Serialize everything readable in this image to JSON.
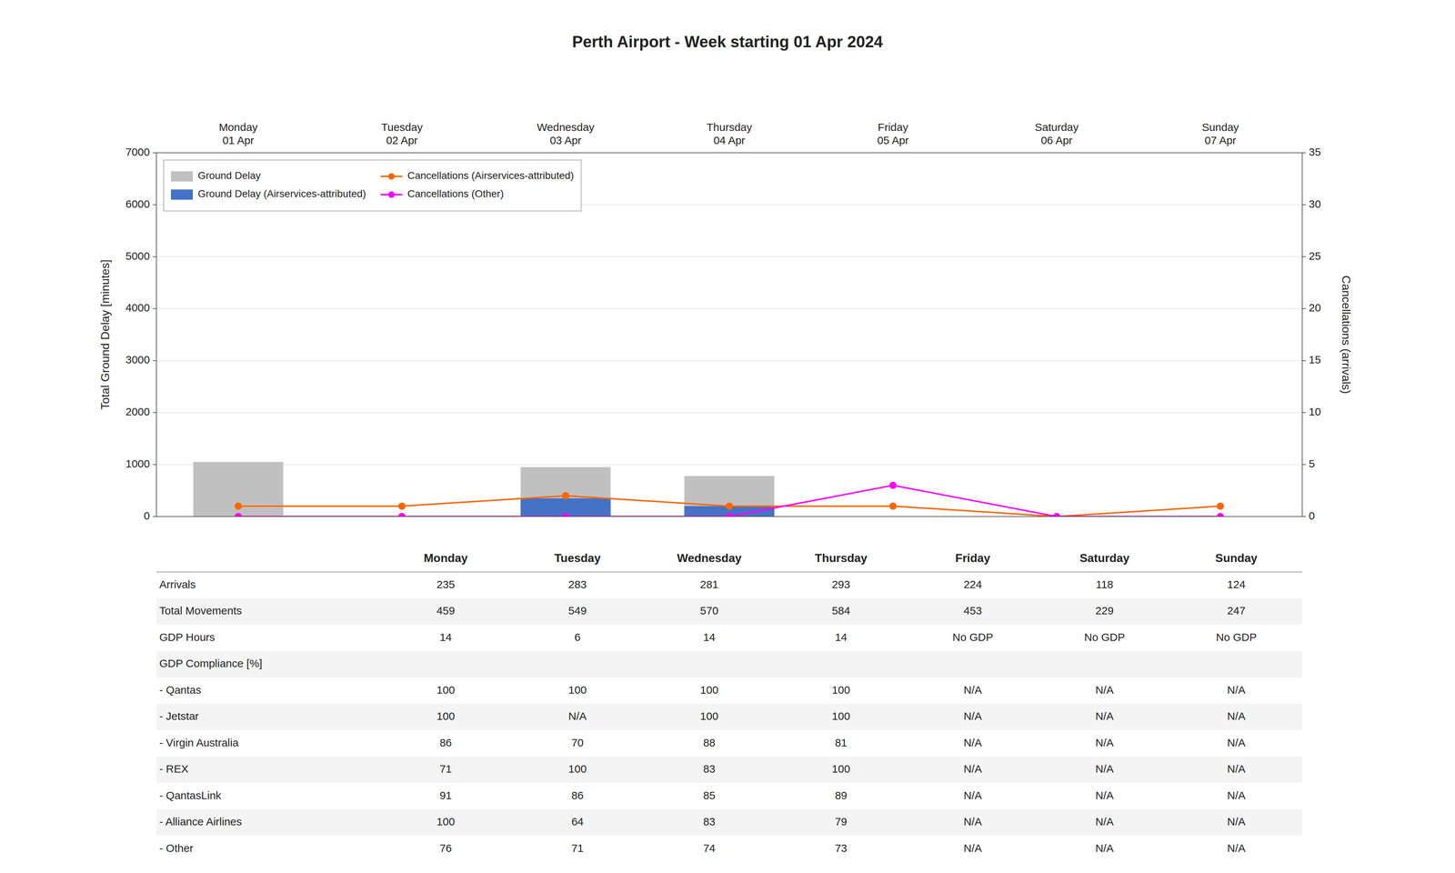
{
  "chart_data": {
    "type": "bar",
    "title": "Perth Airport - Week starting 01 Apr 2024",
    "categories": [
      "Monday\n01 Apr",
      "Tuesday\n02 Apr",
      "Wednesday\n03 Apr",
      "Thursday\n04 Apr",
      "Friday\n05 Apr",
      "Saturday\n06 Apr",
      "Sunday\n07 Apr"
    ],
    "series": [
      {
        "name": "Ground Delay",
        "type": "bar",
        "color": "#c0c0c0",
        "values": [
          1050,
          0,
          950,
          780,
          0,
          0,
          0
        ]
      },
      {
        "name": "Ground Delay (Airservices-attributed)",
        "type": "bar",
        "color": "#4472c4",
        "values": [
          0,
          0,
          350,
          200,
          0,
          0,
          0
        ]
      },
      {
        "name": "Cancellations (Airservices-attributed)",
        "type": "line",
        "axis": "y2",
        "marker": "circle",
        "line_style": "solid",
        "color": "#ff6600",
        "values": [
          1,
          1,
          2,
          1,
          1,
          0,
          1
        ]
      },
      {
        "name": "Cancellations (Other)",
        "type": "line",
        "axis": "y2",
        "marker": "circle",
        "line_style": "solid",
        "color": "#ff00ff",
        "values": [
          0,
          0,
          0,
          0,
          3,
          0,
          0
        ]
      }
    ],
    "stacked": false,
    "ylabel": "Total Ground Delay [minutes]",
    "y2label": "Cancellations (arrivals)",
    "ylim": [
      0,
      7000
    ],
    "yticks": [
      0,
      1000,
      2000,
      3000,
      4000,
      5000,
      6000,
      7000
    ],
    "y2lim": [
      0,
      35
    ],
    "y2ticks": [
      0,
      5,
      10,
      15,
      20,
      25,
      30,
      35
    ],
    "grid": true,
    "legend": "upper left"
  },
  "table": {
    "columns": [
      "Monday",
      "Tuesday",
      "Wednesday",
      "Thursday",
      "Friday",
      "Saturday",
      "Sunday"
    ],
    "rows": [
      {
        "label": "Arrivals",
        "values": [
          "235",
          "283",
          "281",
          "293",
          "224",
          "118",
          "124"
        ]
      },
      {
        "label": "Total Movements",
        "values": [
          "459",
          "549",
          "570",
          "584",
          "453",
          "229",
          "247"
        ]
      },
      {
        "label": "GDP Hours",
        "values": [
          "14",
          "6",
          "14",
          "14",
          "No GDP",
          "No GDP",
          "No GDP"
        ]
      },
      {
        "label": "GDP Compliance [%]",
        "values": [
          null,
          null,
          null,
          null,
          null,
          null,
          null
        ]
      },
      {
        "label": "- Qantas",
        "values": [
          "100",
          "100",
          "100",
          "100",
          "N/A",
          "N/A",
          "N/A"
        ]
      },
      {
        "label": "- Jetstar",
        "values": [
          "100",
          "N/A",
          "100",
          "100",
          "N/A",
          "N/A",
          "N/A"
        ]
      },
      {
        "label": "- Virgin Australia",
        "values": [
          "86",
          "70",
          "88",
          "81",
          "N/A",
          "N/A",
          "N/A"
        ]
      },
      {
        "label": "- REX",
        "values": [
          "71",
          "100",
          "83",
          "100",
          "N/A",
          "N/A",
          "N/A"
        ]
      },
      {
        "label": "- QantasLink",
        "values": [
          "91",
          "86",
          "85",
          "89",
          "N/A",
          "N/A",
          "N/A"
        ]
      },
      {
        "label": "- Alliance Airlines",
        "values": [
          "100",
          "64",
          "83",
          "79",
          "N/A",
          "N/A",
          "N/A"
        ]
      },
      {
        "label": "- Other",
        "values": [
          "76",
          "71",
          "74",
          "73",
          "N/A",
          "N/A",
          "N/A"
        ]
      }
    ]
  }
}
